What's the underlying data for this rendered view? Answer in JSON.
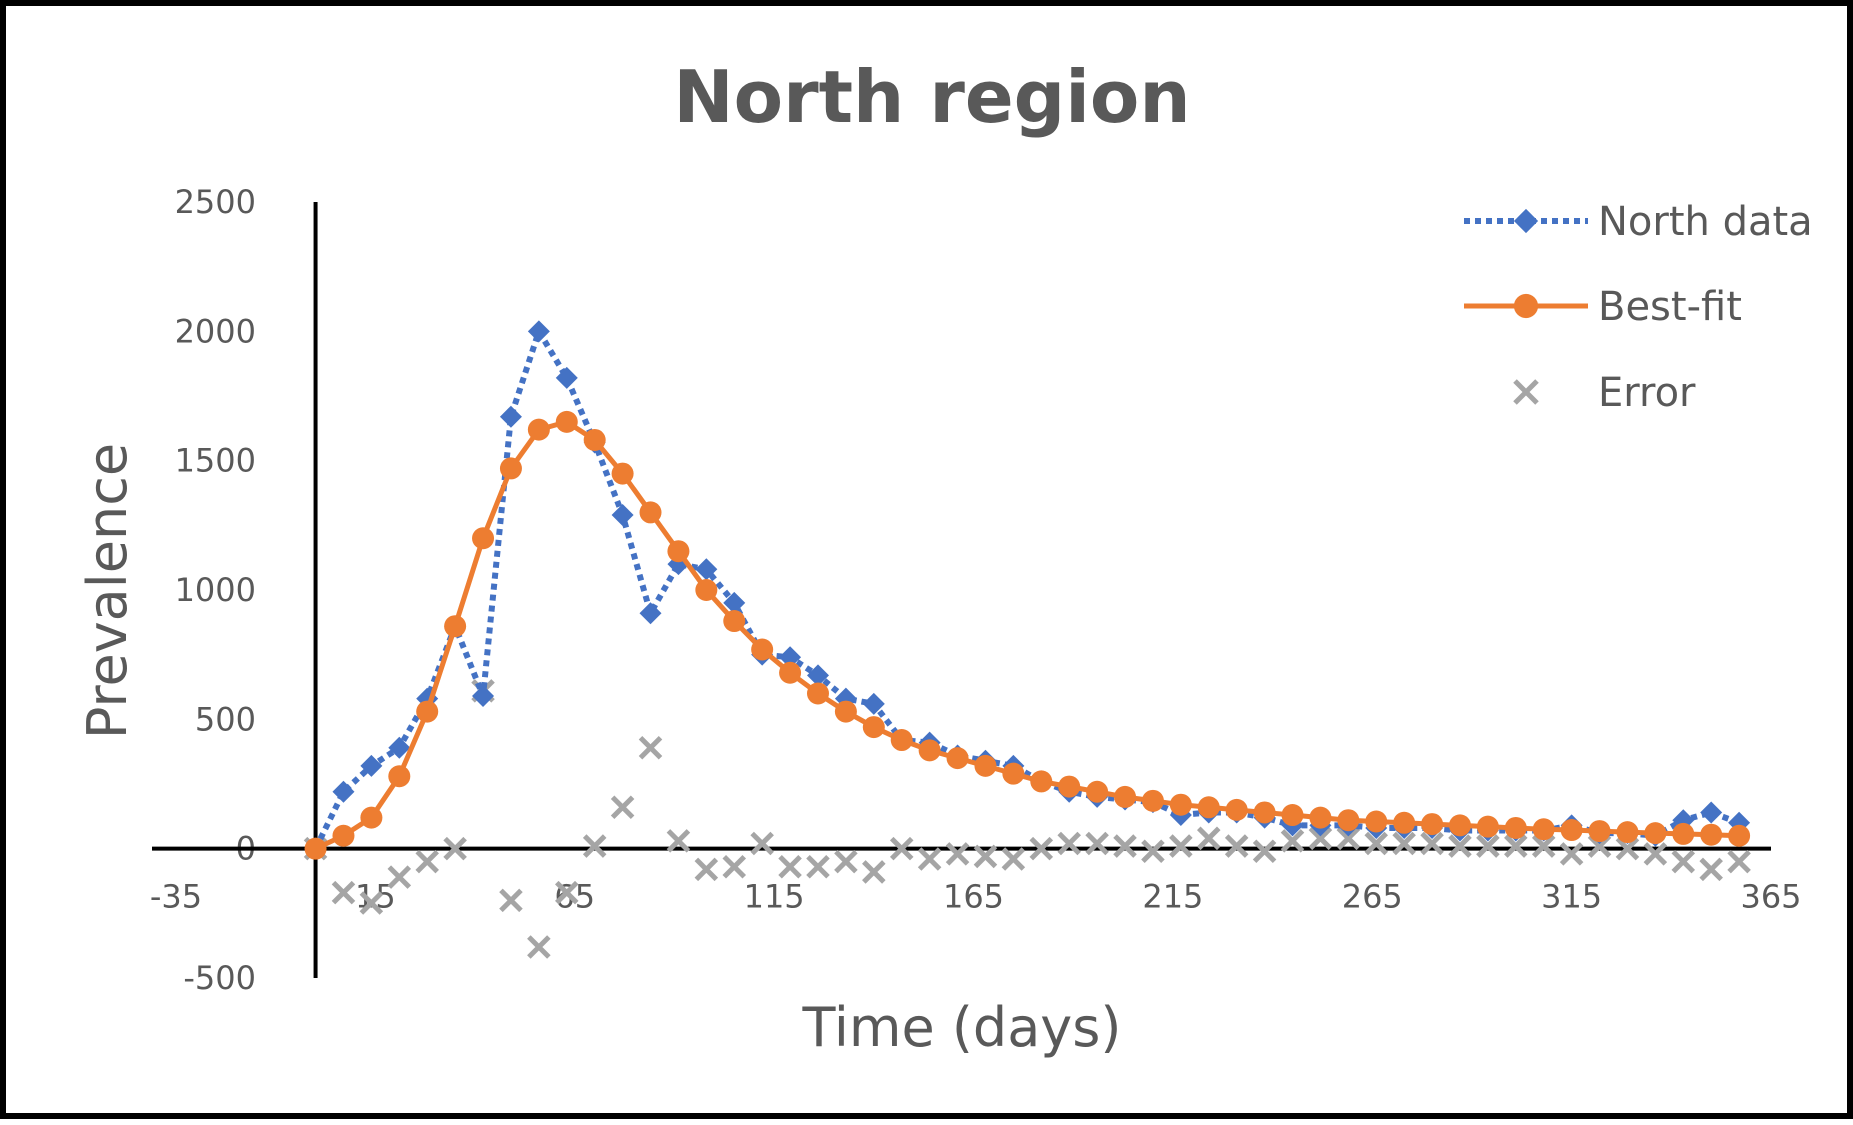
{
  "chart_data": {
    "type": "scatter",
    "title": "North region",
    "xlabel": "Time (days)",
    "ylabel": "Prevalence",
    "xlim": [
      -35,
      365
    ],
    "ylim": [
      -500,
      2500
    ],
    "x_ticks": [
      -35,
      15,
      65,
      115,
      165,
      215,
      265,
      315,
      365
    ],
    "y_ticks": [
      -500,
      0,
      500,
      1000,
      1500,
      2000,
      2500
    ],
    "grid": false,
    "legend_position": "top-right",
    "series": [
      {
        "name": "North data",
        "style": "dotted-line-diamond",
        "color": "#4472C4",
        "x": [
          0,
          7,
          14,
          21,
          28,
          35,
          42,
          49,
          56,
          63,
          70,
          77,
          84,
          91,
          98,
          105,
          112,
          119,
          126,
          133,
          140,
          147,
          154,
          161,
          168,
          175,
          182,
          189,
          196,
          203,
          210,
          217,
          224,
          231,
          238,
          245,
          252,
          259,
          266,
          273,
          280,
          287,
          294,
          301,
          308,
          315,
          322,
          329,
          336,
          343,
          350,
          357
        ],
        "y": [
          0,
          220,
          320,
          390,
          580,
          860,
          590,
          1670,
          2000,
          1820,
          1570,
          1290,
          910,
          1100,
          1080,
          950,
          750,
          740,
          670,
          580,
          560,
          420,
          410,
          360,
          340,
          320,
          260,
          220,
          200,
          190,
          180,
          130,
          140,
          140,
          120,
          90,
          90,
          90,
          80,
          80,
          80,
          70,
          70,
          70,
          70,
          90,
          60,
          60,
          50,
          110,
          140,
          100
        ]
      },
      {
        "name": "Best-fit",
        "style": "solid-line-circle",
        "color": "#ED7D31",
        "x": [
          0,
          7,
          14,
          21,
          28,
          35,
          42,
          49,
          56,
          63,
          70,
          77,
          84,
          91,
          98,
          105,
          112,
          119,
          126,
          133,
          140,
          147,
          154,
          161,
          168,
          175,
          182,
          189,
          196,
          203,
          210,
          217,
          224,
          231,
          238,
          245,
          252,
          259,
          266,
          273,
          280,
          287,
          294,
          301,
          308,
          315,
          322,
          329,
          336,
          343,
          350,
          357
        ],
        "y": [
          0,
          50,
          120,
          280,
          530,
          860,
          1200,
          1470,
          1620,
          1650,
          1580,
          1450,
          1300,
          1150,
          1000,
          880,
          770,
          680,
          600,
          530,
          470,
          420,
          380,
          350,
          320,
          290,
          260,
          240,
          220,
          200,
          185,
          170,
          160,
          150,
          140,
          130,
          120,
          110,
          105,
          100,
          95,
          90,
          85,
          80,
          75,
          72,
          68,
          64,
          60,
          57,
          54,
          50
        ]
      },
      {
        "name": "Error",
        "style": "marker-x",
        "color": "#A5A5A5",
        "x": [
          0,
          7,
          14,
          21,
          28,
          35,
          42,
          49,
          56,
          63,
          70,
          77,
          84,
          91,
          98,
          105,
          112,
          119,
          126,
          133,
          140,
          147,
          154,
          161,
          168,
          175,
          182,
          189,
          196,
          203,
          210,
          217,
          224,
          231,
          238,
          245,
          252,
          259,
          266,
          273,
          280,
          287,
          294,
          301,
          308,
          315,
          322,
          329,
          336,
          343,
          350,
          357
        ],
        "y": [
          0,
          -170,
          -210,
          -110,
          -50,
          0,
          610,
          -200,
          -380,
          -170,
          10,
          160,
          390,
          30,
          -80,
          -70,
          20,
          -70,
          -70,
          -50,
          -90,
          0,
          -40,
          -20,
          -30,
          -40,
          0,
          20,
          20,
          10,
          -10,
          10,
          40,
          10,
          -10,
          30,
          40,
          40,
          20,
          20,
          20,
          10,
          10,
          10,
          10,
          -20,
          10,
          0,
          -20,
          -50,
          -80,
          -50
        ]
      }
    ]
  }
}
